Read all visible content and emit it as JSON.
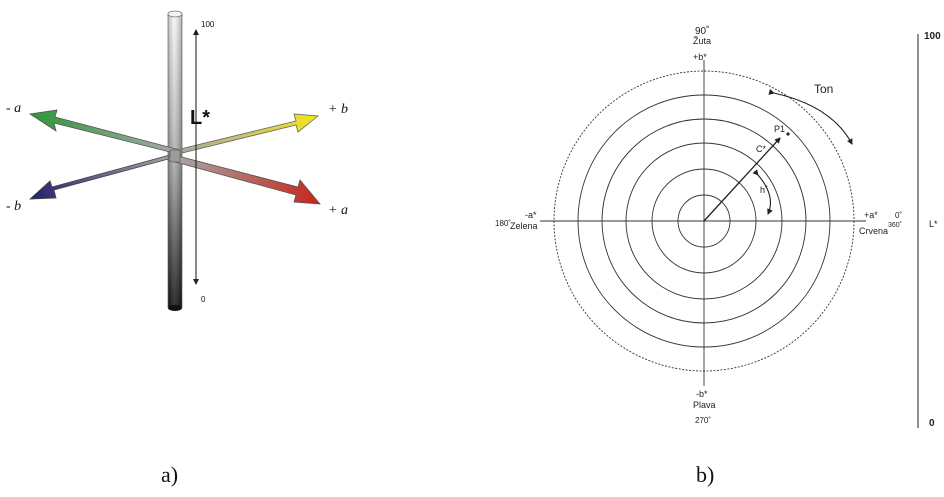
{
  "figure_a": {
    "caption": "a)",
    "l_axis_label": "L*",
    "l_top": "100",
    "l_bottom": "0",
    "label_minus_a": "- a",
    "label_plus_b": "+ b",
    "label_minus_b": "- b",
    "label_plus_a": "+ a",
    "colors": {
      "green": "#2e9a3a",
      "yellow": "#f2e51c",
      "blue": "#27246e",
      "red": "#c8281c"
    }
  },
  "figure_b": {
    "caption": "b)",
    "top_angle": "90˚",
    "top_name": "Žuta",
    "top_axis": "+b*",
    "left_axis": "-a*",
    "left_angle": "180˚",
    "left_name": "Zelena",
    "right_axis": "+a*",
    "right_angle_top": "0˚",
    "right_angle_bottom": "360˚",
    "right_name": "Crvena",
    "bottom_axis": "-b*",
    "bottom_name": "Plava",
    "bottom_angle": "270˚",
    "point_label": "P1",
    "chroma_label": "C*",
    "hue_label": "h˚",
    "tone_label": "Ton",
    "l_scale_top": "100",
    "l_scale_label": "L*",
    "l_scale_bottom": "0"
  }
}
